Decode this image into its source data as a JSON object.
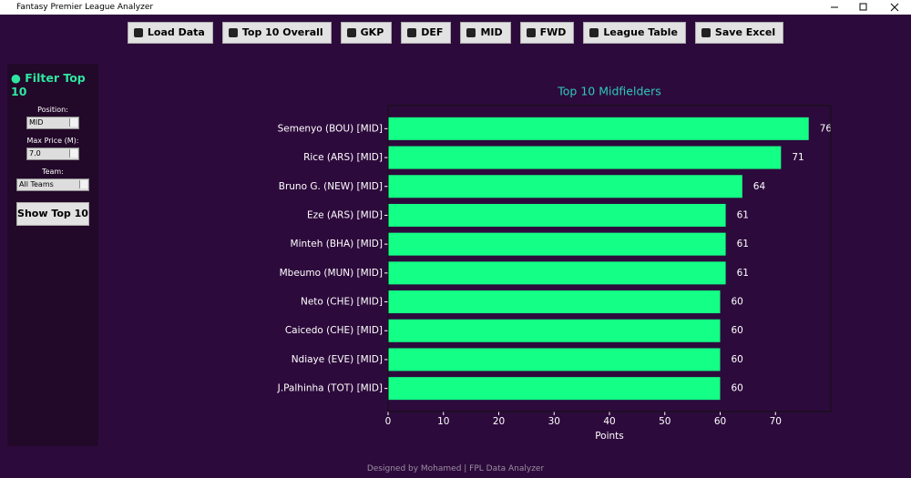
{
  "window": {
    "title": "Fantasy Premier League Analyzer"
  },
  "toolbar": {
    "buttons": [
      "Load Data",
      "Top 10 Overall",
      "GKP",
      "DEF",
      "MID",
      "FWD",
      "League Table",
      "Save Excel"
    ]
  },
  "sidebar": {
    "title": "Filter Top 10",
    "position_label": "Position:",
    "position": "MID",
    "price_label": "Max Price (M):",
    "price": "7.0",
    "team_label": "Team:",
    "team": "All Teams",
    "button": "Show Top 10"
  },
  "chart_data": {
    "type": "bar",
    "orientation": "horizontal",
    "title": "Top 10 Midfielders",
    "xlabel": "Points",
    "categories": [
      "Semenyo (BOU) [MID]",
      "Rice (ARS) [MID]",
      "Bruno G. (NEW) [MID]",
      "Eze (ARS) [MID]",
      "Minteh (BHA) [MID]",
      "Mbeumo (MUN) [MID]",
      "Neto (CHE) [MID]",
      "Caicedo (CHE) [MID]",
      "Ndiaye (EVE) [MID]",
      "J.Palhinha (TOT) [MID]"
    ],
    "values": [
      76,
      71,
      64,
      61,
      61,
      61,
      60,
      60,
      60,
      60
    ],
    "color": "#14ff85",
    "xlim": [
      0,
      80
    ],
    "xticks": [
      0,
      10,
      20,
      30,
      40,
      50,
      60,
      70
    ]
  },
  "footer": "Designed by Mohamed | FPL Data Analyzer"
}
